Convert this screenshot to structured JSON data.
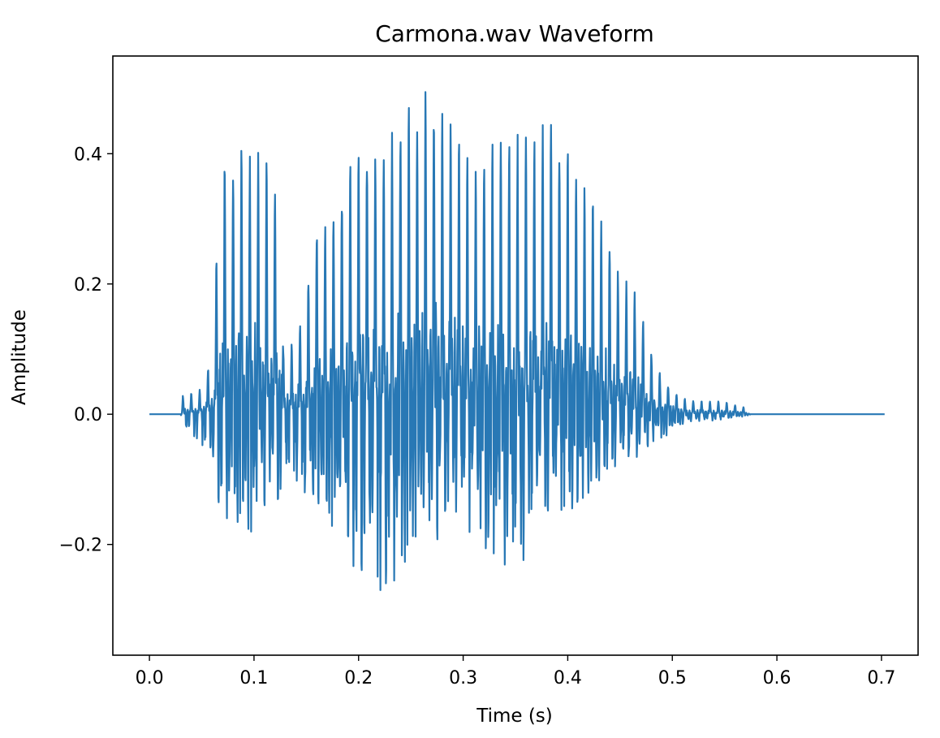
{
  "chart_data": {
    "type": "line",
    "title": "Carmona.wav Waveform",
    "xlabel": "Time (s)",
    "ylabel": "Amplitude",
    "xlim": [
      -0.035,
      0.735
    ],
    "ylim": [
      -0.37,
      0.55
    ],
    "x_ticks": [
      0.0,
      0.1,
      0.2,
      0.3,
      0.4,
      0.5,
      0.6,
      0.7
    ],
    "x_tick_labels": [
      "0.0",
      "0.1",
      "0.2",
      "0.3",
      "0.4",
      "0.5",
      "0.6",
      "0.7"
    ],
    "y_ticks": [
      -0.2,
      0.0,
      0.2,
      0.4
    ],
    "y_tick_labels": [
      "−0.2",
      "0.0",
      "0.2",
      "0.4"
    ],
    "grid": false,
    "series": [
      {
        "color": "#2878b5",
        "duration": 0.703,
        "envelope_max": [
          [
            0.0,
            0.0
          ],
          [
            0.03,
            0.0
          ],
          [
            0.032,
            0.03
          ],
          [
            0.05,
            0.04
          ],
          [
            0.06,
            0.1
          ],
          [
            0.065,
            0.3
          ],
          [
            0.07,
            0.42
          ],
          [
            0.085,
            0.42
          ],
          [
            0.1,
            0.41
          ],
          [
            0.11,
            0.41
          ],
          [
            0.12,
            0.38
          ],
          [
            0.125,
            0.36
          ],
          [
            0.128,
            0.1
          ],
          [
            0.14,
            0.12
          ],
          [
            0.15,
            0.2
          ],
          [
            0.16,
            0.3
          ],
          [
            0.17,
            0.3
          ],
          [
            0.18,
            0.32
          ],
          [
            0.19,
            0.4
          ],
          [
            0.2,
            0.43
          ],
          [
            0.22,
            0.43
          ],
          [
            0.24,
            0.47
          ],
          [
            0.26,
            0.5
          ],
          [
            0.27,
            0.51
          ],
          [
            0.28,
            0.49
          ],
          [
            0.29,
            0.45
          ],
          [
            0.3,
            0.44
          ],
          [
            0.31,
            0.38
          ],
          [
            0.32,
            0.41
          ],
          [
            0.34,
            0.44
          ],
          [
            0.36,
            0.44
          ],
          [
            0.38,
            0.47
          ],
          [
            0.39,
            0.45
          ],
          [
            0.4,
            0.42
          ],
          [
            0.41,
            0.37
          ],
          [
            0.42,
            0.34
          ],
          [
            0.43,
            0.32
          ],
          [
            0.44,
            0.28
          ],
          [
            0.45,
            0.22
          ],
          [
            0.46,
            0.21
          ],
          [
            0.47,
            0.17
          ],
          [
            0.48,
            0.1
          ],
          [
            0.49,
            0.06
          ],
          [
            0.5,
            0.04
          ],
          [
            0.51,
            0.025
          ],
          [
            0.53,
            0.02
          ],
          [
            0.55,
            0.02
          ],
          [
            0.57,
            0.01
          ],
          [
            0.575,
            0.0
          ],
          [
            0.703,
            0.0
          ]
        ],
        "envelope_min": [
          [
            0.0,
            0.0
          ],
          [
            0.03,
            0.0
          ],
          [
            0.032,
            -0.02
          ],
          [
            0.05,
            -0.05
          ],
          [
            0.06,
            -0.08
          ],
          [
            0.065,
            -0.15
          ],
          [
            0.07,
            -0.2
          ],
          [
            0.085,
            -0.21
          ],
          [
            0.1,
            -0.2
          ],
          [
            0.11,
            -0.19
          ],
          [
            0.12,
            -0.18
          ],
          [
            0.125,
            -0.15
          ],
          [
            0.128,
            -0.1
          ],
          [
            0.14,
            -0.12
          ],
          [
            0.15,
            -0.15
          ],
          [
            0.16,
            -0.17
          ],
          [
            0.18,
            -0.18
          ],
          [
            0.19,
            -0.23
          ],
          [
            0.2,
            -0.3
          ],
          [
            0.21,
            -0.31
          ],
          [
            0.22,
            -0.31
          ],
          [
            0.23,
            -0.33
          ],
          [
            0.24,
            -0.3
          ],
          [
            0.25,
            -0.2
          ],
          [
            0.26,
            -0.2
          ],
          [
            0.27,
            -0.22
          ],
          [
            0.28,
            -0.21
          ],
          [
            0.29,
            -0.18
          ],
          [
            0.3,
            -0.18
          ],
          [
            0.31,
            -0.22
          ],
          [
            0.32,
            -0.24
          ],
          [
            0.34,
            -0.25
          ],
          [
            0.36,
            -0.25
          ],
          [
            0.37,
            -0.18
          ],
          [
            0.38,
            -0.17
          ],
          [
            0.39,
            -0.17
          ],
          [
            0.4,
            -0.17
          ],
          [
            0.41,
            -0.16
          ],
          [
            0.42,
            -0.14
          ],
          [
            0.43,
            -0.13
          ],
          [
            0.44,
            -0.12
          ],
          [
            0.45,
            -0.11
          ],
          [
            0.46,
            -0.09
          ],
          [
            0.47,
            -0.06
          ],
          [
            0.48,
            -0.05
          ],
          [
            0.49,
            -0.04
          ],
          [
            0.5,
            -0.03
          ],
          [
            0.51,
            -0.02
          ],
          [
            0.53,
            -0.012
          ],
          [
            0.55,
            -0.01
          ],
          [
            0.57,
            -0.005
          ],
          [
            0.575,
            0.0
          ],
          [
            0.703,
            0.0
          ]
        ]
      }
    ]
  }
}
